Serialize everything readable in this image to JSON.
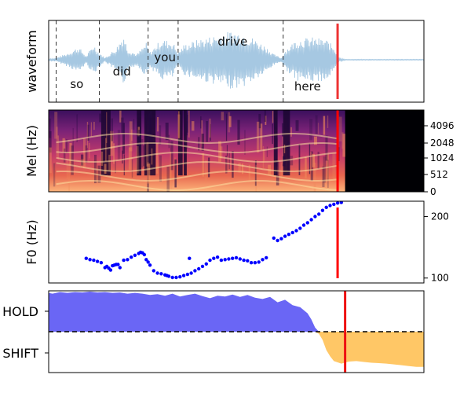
{
  "chart_data": [
    {
      "type": "area",
      "ylabel": "waveform",
      "series_color": "#a6c8e2",
      "xlim": [
        0,
        1
      ],
      "words": [
        {
          "text": "so",
          "x": 0.075
        },
        {
          "text": "did",
          "x": 0.195
        },
        {
          "text": "you",
          "x": 0.31
        },
        {
          "text": "drive",
          "x": 0.49
        },
        {
          "text": "here",
          "x": 0.69
        }
      ],
      "word_boundaries": [
        0.02,
        0.135,
        0.265,
        0.345,
        0.625
      ],
      "cursor_x": 0.77,
      "cursor_color": "#ee3333"
    },
    {
      "type": "heatmap",
      "ylabel": "Mel (Hz)",
      "yticks": [
        "0",
        "512",
        "1024",
        "2048",
        "4096"
      ],
      "colormap": "magma",
      "cursor_x": 0.77,
      "cursor_color": "#ff0000"
    },
    {
      "type": "scatter",
      "ylabel": "F0 (Hz)",
      "yticks": [
        100,
        200
      ],
      "ylim": [
        92,
        225
      ],
      "point_color": "#0000ff",
      "cursor_x": 0.77,
      "cursor_color": "#ff0000",
      "x": [
        0.1,
        0.11,
        0.12,
        0.13,
        0.14,
        0.15,
        0.155,
        0.16,
        0.165,
        0.17,
        0.175,
        0.18,
        0.185,
        0.19,
        0.2,
        0.21,
        0.22,
        0.23,
        0.24,
        0.245,
        0.25,
        0.255,
        0.26,
        0.265,
        0.27,
        0.28,
        0.29,
        0.3,
        0.31,
        0.315,
        0.32,
        0.33,
        0.34,
        0.35,
        0.36,
        0.37,
        0.38,
        0.39,
        0.4,
        0.41,
        0.42,
        0.43,
        0.44,
        0.45,
        0.46,
        0.47,
        0.48,
        0.49,
        0.5,
        0.51,
        0.52,
        0.53,
        0.54,
        0.55,
        0.56,
        0.57,
        0.58,
        0.6,
        0.61,
        0.62,
        0.63,
        0.64,
        0.65,
        0.66,
        0.67,
        0.68,
        0.69,
        0.7,
        0.71,
        0.72,
        0.73,
        0.74,
        0.75,
        0.76,
        0.77,
        0.78
      ],
      "y": [
        132,
        130,
        129,
        127,
        125,
        117,
        119,
        116,
        113,
        120,
        121,
        122,
        122,
        117,
        129,
        130,
        134,
        137,
        140,
        142,
        141,
        138,
        130,
        126,
        121,
        112,
        108,
        107,
        105,
        104,
        103,
        101,
        101,
        102,
        104,
        106,
        108,
        112,
        115,
        119,
        123,
        129,
        132,
        134,
        129,
        130,
        131,
        132,
        133,
        131,
        129,
        128,
        125,
        125,
        126,
        130,
        133,
        165,
        161,
        164,
        168,
        171,
        174,
        177,
        181,
        186,
        190,
        195,
        200,
        204,
        210,
        215,
        218,
        220,
        222,
        223
      ],
      "extra_points": [
        {
          "x": 0.375,
          "y": 132
        }
      ]
    },
    {
      "type": "area",
      "yticks": [
        "HOLD",
        "SHIFT"
      ],
      "ylim": [
        -1,
        1
      ],
      "hold_color": "#6a66f5",
      "shift_color": "#ffc766",
      "threshold": 0,
      "cursor_x": 0.79,
      "cursor_color": "#ee1111",
      "x": [
        0,
        0.01,
        0.03,
        0.05,
        0.07,
        0.09,
        0.11,
        0.13,
        0.15,
        0.17,
        0.19,
        0.21,
        0.23,
        0.25,
        0.27,
        0.29,
        0.31,
        0.33,
        0.35,
        0.37,
        0.39,
        0.41,
        0.43,
        0.45,
        0.47,
        0.49,
        0.51,
        0.53,
        0.55,
        0.57,
        0.59,
        0.61,
        0.63,
        0.65,
        0.67,
        0.69,
        0.7,
        0.71,
        0.72,
        0.73,
        0.74,
        0.75,
        0.76,
        0.78,
        0.8,
        0.82,
        0.84,
        0.86,
        0.88,
        0.9,
        0.92,
        0.94,
        0.96,
        0.98,
        1
      ],
      "y": [
        0.95,
        0.93,
        0.97,
        0.95,
        0.97,
        0.96,
        0.98,
        0.96,
        0.97,
        0.95,
        0.96,
        0.93,
        0.95,
        0.93,
        0.9,
        0.92,
        0.88,
        0.93,
        0.86,
        0.9,
        0.93,
        0.87,
        0.82,
        0.88,
        0.86,
        0.91,
        0.85,
        0.9,
        0.83,
        0.8,
        0.85,
        0.72,
        0.78,
        0.65,
        0.6,
        0.45,
        0.3,
        0.1,
        -0.05,
        -0.2,
        -0.45,
        -0.6,
        -0.72,
        -0.78,
        -0.73,
        -0.72,
        -0.74,
        -0.76,
        -0.77,
        -0.78,
        -0.8,
        -0.82,
        -0.84,
        -0.86,
        -0.86
      ]
    }
  ]
}
